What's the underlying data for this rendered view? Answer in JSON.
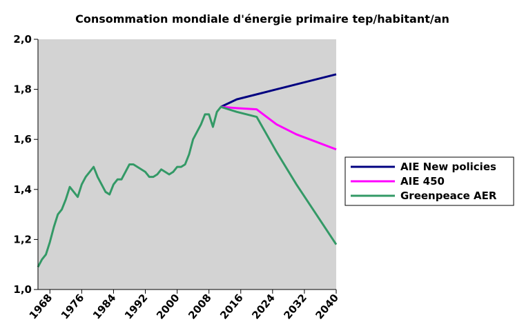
{
  "chart_data": {
    "type": "line",
    "title": "Consommation mondiale d'énergie primaire tep/habitant/an",
    "x": [
      1965,
      1966,
      1967,
      1968,
      1969,
      1970,
      1971,
      1972,
      1973,
      1974,
      1975,
      1976,
      1977,
      1978,
      1979,
      1980,
      1981,
      1982,
      1983,
      1984,
      1985,
      1986,
      1987,
      1988,
      1989,
      1990,
      1991,
      1992,
      1993,
      1994,
      1995,
      1996,
      1997,
      1998,
      1999,
      2000,
      2001,
      2002,
      2003,
      2004,
      2005,
      2006,
      2007,
      2008,
      2009,
      2010,
      2011,
      2015,
      2020,
      2025,
      2030,
      2035,
      2040
    ],
    "series": [
      {
        "name": "AIE New policies",
        "color": "#000080",
        "values": [
          null,
          null,
          null,
          null,
          null,
          null,
          null,
          null,
          null,
          null,
          null,
          null,
          null,
          null,
          null,
          null,
          null,
          null,
          null,
          null,
          null,
          null,
          null,
          null,
          null,
          null,
          null,
          null,
          null,
          null,
          null,
          null,
          null,
          null,
          null,
          null,
          null,
          null,
          null,
          null,
          null,
          null,
          null,
          null,
          null,
          null,
          1.73,
          1.76,
          1.78,
          1.8,
          1.82,
          1.84,
          1.86
        ]
      },
      {
        "name": "AIE 450",
        "color": "#ff00ff",
        "values": [
          null,
          null,
          null,
          null,
          null,
          null,
          null,
          null,
          null,
          null,
          null,
          null,
          null,
          null,
          null,
          null,
          null,
          null,
          null,
          null,
          null,
          null,
          null,
          null,
          null,
          null,
          null,
          null,
          null,
          null,
          null,
          null,
          null,
          null,
          null,
          null,
          null,
          null,
          null,
          null,
          null,
          null,
          null,
          null,
          null,
          null,
          1.73,
          1.725,
          1.72,
          1.66,
          1.62,
          1.59,
          1.56
        ]
      },
      {
        "name": "Greenpeace AER",
        "color": "#339966",
        "values": [
          1.09,
          1.12,
          1.14,
          1.19,
          1.25,
          1.3,
          1.32,
          1.36,
          1.41,
          1.39,
          1.37,
          1.42,
          1.45,
          1.47,
          1.49,
          1.45,
          1.42,
          1.39,
          1.38,
          1.42,
          1.44,
          1.44,
          1.47,
          1.5,
          1.5,
          1.49,
          1.48,
          1.47,
          1.45,
          1.45,
          1.46,
          1.48,
          1.47,
          1.46,
          1.47,
          1.49,
          1.49,
          1.5,
          1.54,
          1.6,
          1.63,
          1.66,
          1.7,
          1.7,
          1.65,
          1.71,
          1.73,
          1.71,
          1.69,
          1.55,
          1.42,
          1.3,
          1.18
        ]
      }
    ],
    "xlim": [
      1965,
      2040
    ],
    "xticks": [
      1968,
      1976,
      1984,
      1992,
      2000,
      2008,
      2016,
      2024,
      2032,
      2040
    ],
    "ylim": [
      1.0,
      2.0
    ],
    "yticks": [
      {
        "value": 1.0,
        "label": "1,0"
      },
      {
        "value": 1.2,
        "label": "1,2"
      },
      {
        "value": 1.4,
        "label": "1,4"
      },
      {
        "value": 1.6,
        "label": "1,6"
      },
      {
        "value": 1.8,
        "label": "1,8"
      },
      {
        "value": 2.0,
        "label": "2,0"
      }
    ],
    "plot_background": "#d3d3d3",
    "legend": "right"
  }
}
